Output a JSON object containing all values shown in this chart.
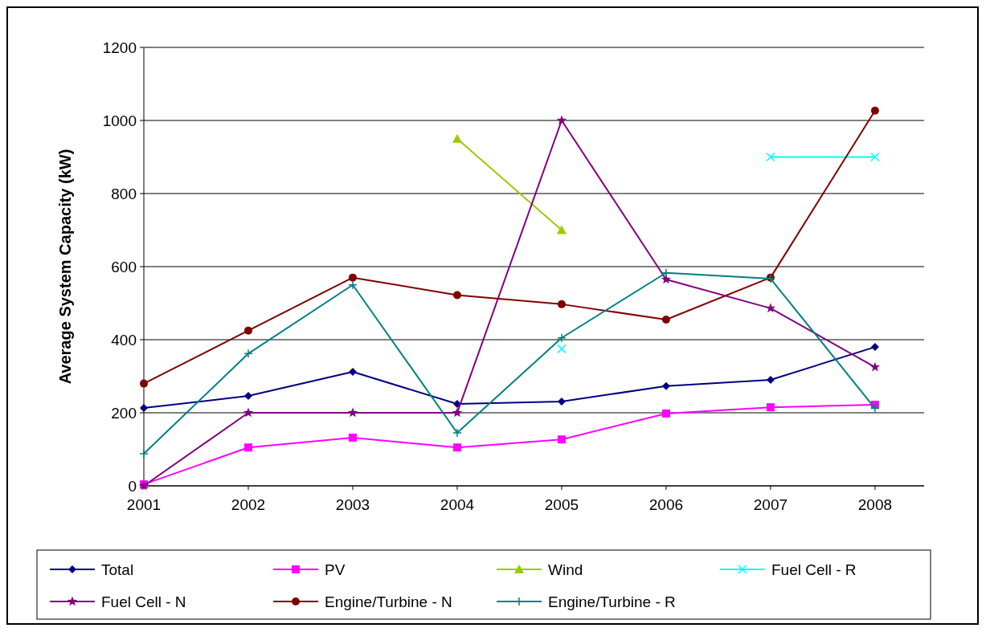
{
  "chart_data": {
    "type": "line",
    "ylabel": "Average System Capacity (kW)",
    "x": [
      2001,
      2002,
      2003,
      2004,
      2005,
      2006,
      2007,
      2008
    ],
    "xlim": [
      2001,
      2008.47
    ],
    "xticks": [
      2001,
      2002,
      2003,
      2004,
      2005,
      2006,
      2007,
      2008
    ],
    "ylim": [
      0,
      1200
    ],
    "yticks": [
      0,
      200,
      400,
      600,
      800,
      1000,
      1200
    ],
    "grid": "y",
    "legend": "bottom",
    "series": [
      {
        "name": "Total",
        "color": "#000080",
        "marker": "diamond",
        "values": [
          213,
          246,
          312,
          224,
          231,
          273,
          290,
          380
        ]
      },
      {
        "name": "PV",
        "color": "#ff00ff",
        "marker": "square",
        "values": [
          4,
          105,
          132,
          105,
          127,
          198,
          215,
          222
        ]
      },
      {
        "name": "Wind",
        "color": "#99cc00",
        "marker": "triangle",
        "values": [
          null,
          null,
          null,
          950,
          700,
          null,
          null,
          null
        ]
      },
      {
        "name": "Fuel Cell - R",
        "color": "#00ffff",
        "marker": "cross",
        "values": [
          null,
          null,
          null,
          null,
          375,
          null,
          900,
          900
        ]
      },
      {
        "name": "Fuel Cell - N",
        "color": "#800080",
        "marker": "star",
        "values": [
          0,
          200,
          200,
          200,
          1000,
          565,
          486,
          325
        ]
      },
      {
        "name": "Engine/Turbine - N",
        "color": "#800000",
        "marker": "circle",
        "values": [
          280,
          425,
          570,
          522,
          497,
          455,
          570,
          1027
        ]
      },
      {
        "name": "Engine/Turbine - R",
        "color": "#008080",
        "marker": "plus",
        "values": [
          88,
          362,
          550,
          145,
          405,
          583,
          567,
          212
        ]
      }
    ]
  }
}
